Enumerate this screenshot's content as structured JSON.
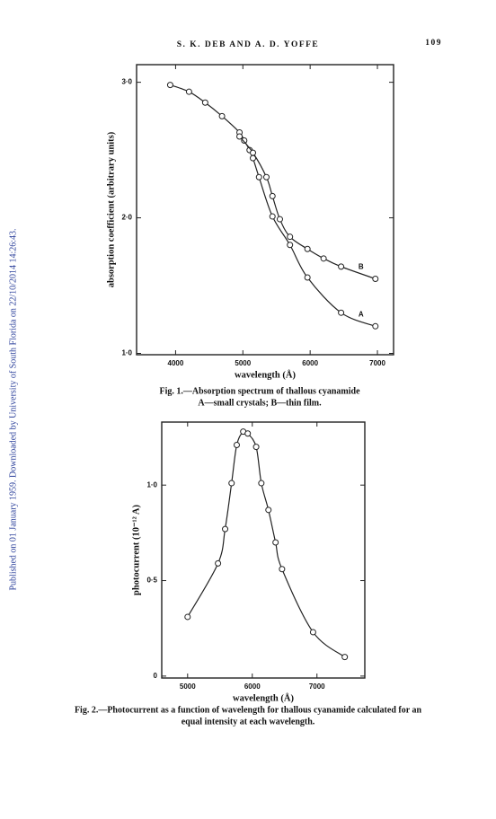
{
  "header": {
    "authors": "S. K. DEB AND A. D. YOFFE",
    "page": "109"
  },
  "watermark": "Published on 01 January 1959. Downloaded by University of South Florida on 22/10/2014 14:26:43.",
  "chart_data": [
    {
      "type": "line",
      "xlabel": "wavelength (Å)",
      "ylabel": "absorption coefficient (arbitrary units)",
      "caption": [
        "Fig. 1.—Absorption spectrum of thallous cyanamide",
        "A—small crystals; B—thin film."
      ],
      "xlim": [
        3420,
        7240
      ],
      "ylim": [
        0.99,
        3.13
      ],
      "xticks": [
        4000,
        5000,
        6000,
        7000
      ],
      "yticks": [
        {
          "value": 1,
          "label": "1·0"
        },
        {
          "value": 2,
          "label": "2·0"
        },
        {
          "value": 3,
          "label": "3·0"
        }
      ],
      "series": [
        {
          "name": "A",
          "color": "#222222",
          "x": [
            3920,
            4200,
            4440,
            4690,
            4950,
            5020,
            5100,
            5150,
            5240,
            5440,
            5700,
            5960,
            6460,
            6970
          ],
          "values": [
            2.98,
            2.93,
            2.85,
            2.75,
            2.63,
            2.57,
            2.5,
            2.44,
            2.3,
            2.01,
            1.8,
            1.56,
            1.3,
            1.2
          ]
        },
        {
          "name": "B",
          "color": "#222222",
          "x": [
            4950,
            5150,
            5350,
            5440,
            5550,
            5700,
            5960,
            6200,
            6460,
            6970
          ],
          "values": [
            2.6,
            2.48,
            2.3,
            2.16,
            1.99,
            1.86,
            1.77,
            1.7,
            1.64,
            1.55
          ]
        }
      ]
    },
    {
      "type": "line",
      "xlabel": "wavelength (Å)",
      "ylabel": "photocurrent (10⁻¹² A)",
      "caption": [
        "Fig. 2.—Photocurrent as a function of wavelength for thallous cyanamide calculated for an",
        "equal intensity at each wavelength."
      ],
      "xlim": [
        4600,
        7740
      ],
      "ylim": [
        -0.01,
        1.33
      ],
      "xticks": [
        5000,
        6000,
        7000
      ],
      "yticks": [
        0,
        {
          "value": 0.5,
          "label": "0·5"
        },
        {
          "value": 1,
          "label": "1·0"
        }
      ],
      "series": [
        {
          "color": "#222222",
          "x": [
            5000,
            5470,
            5580,
            5680,
            5760,
            5860,
            5930,
            6060,
            6140,
            6250,
            6360,
            6460,
            6940,
            7430
          ],
          "values": [
            0.31,
            0.59,
            0.77,
            1.01,
            1.21,
            1.28,
            1.27,
            1.2,
            1.01,
            0.87,
            0.7,
            0.56,
            0.23,
            0.1
          ]
        }
      ]
    }
  ]
}
